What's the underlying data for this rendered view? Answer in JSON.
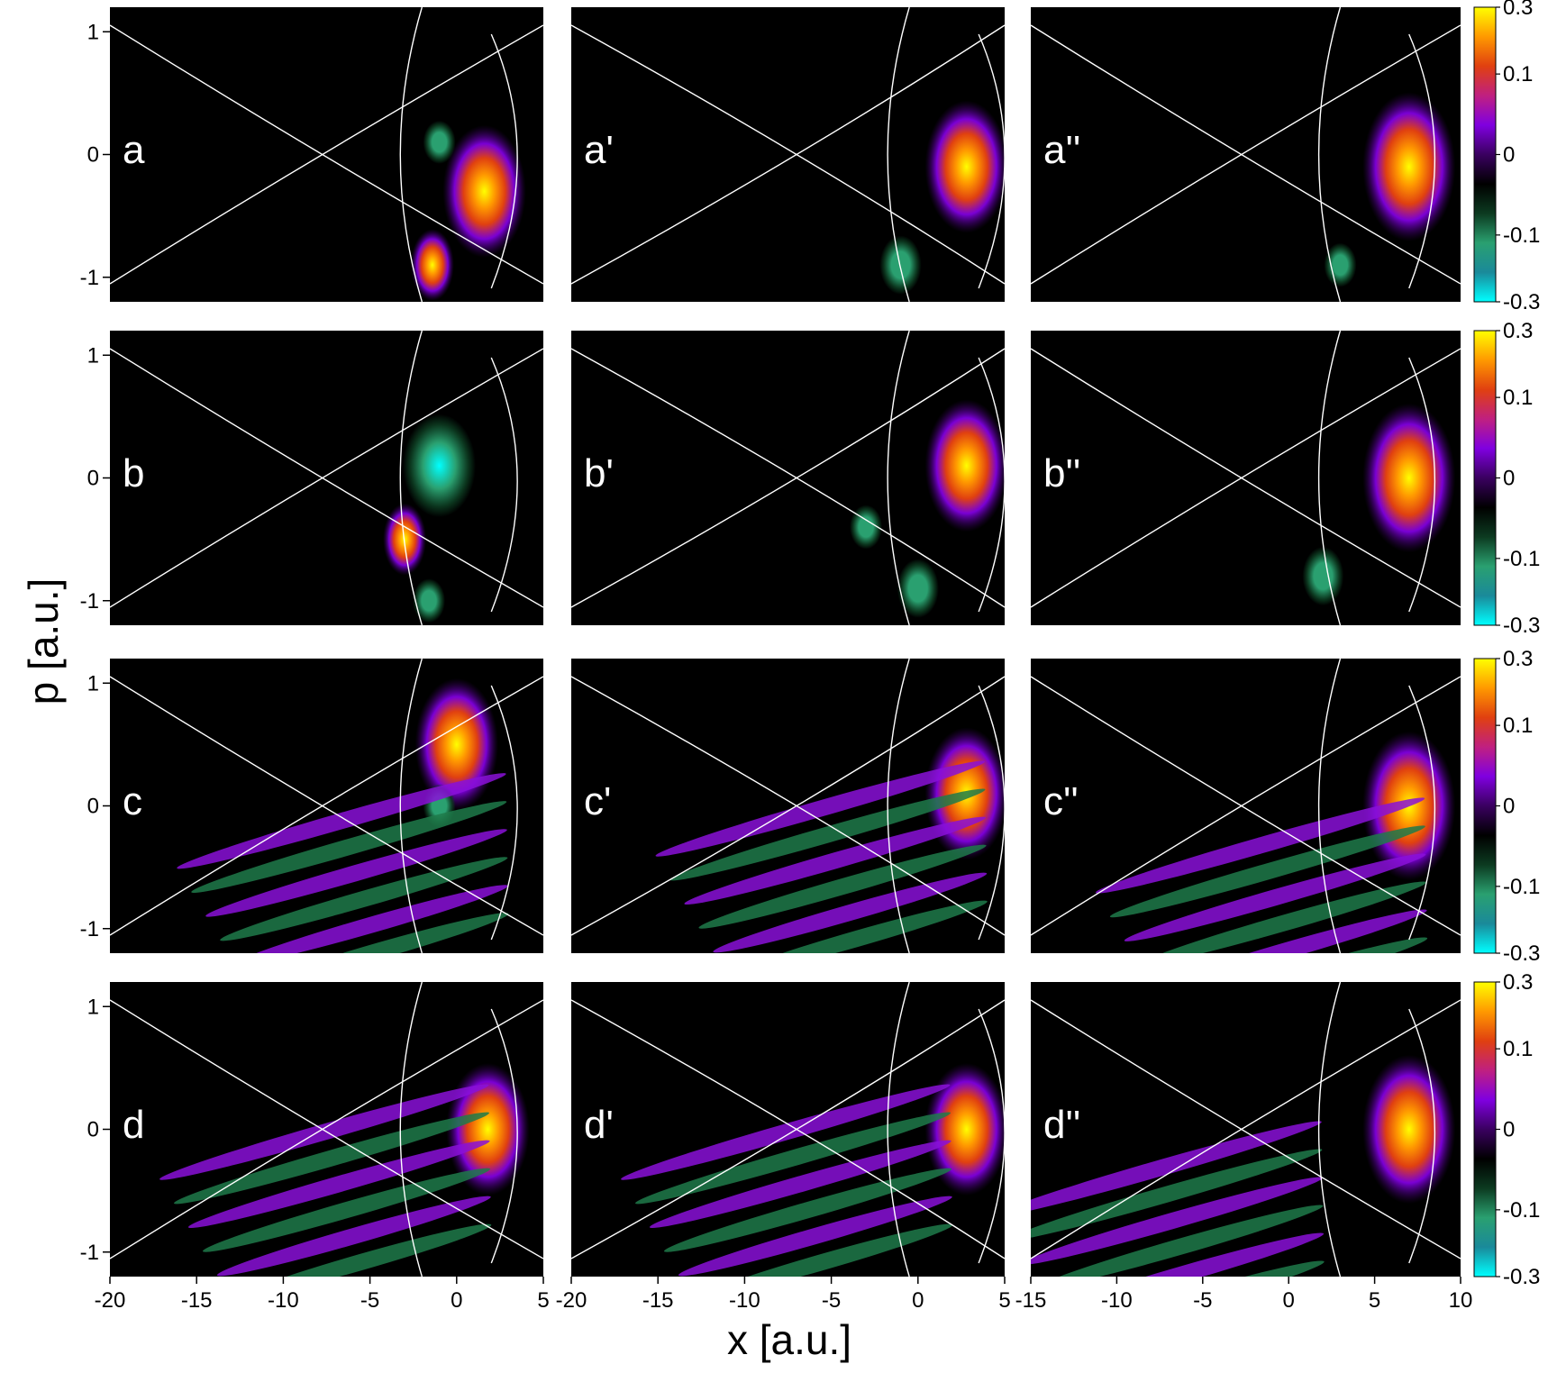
{
  "figure": {
    "ylabel": "p [a.u.]",
    "xlabel": "x [a.u.]",
    "colors": {
      "background": "#000000",
      "separatrix": "#ffffff",
      "colormap": [
        "#00ffff",
        "#1a8a9a",
        "#2aa070",
        "#0c3a20",
        "#000000",
        "#3a0060",
        "#8000e0",
        "#c02080",
        "#e04010",
        "#ff9900",
        "#ffff00"
      ]
    }
  },
  "chart_data": [
    {
      "type": "heatmap",
      "panel_label": "a",
      "row": 0,
      "col": 0,
      "xlim": [
        -20,
        5
      ],
      "ylim": [
        -1.2,
        1.2
      ],
      "yticks": [
        1,
        0,
        -1
      ],
      "ytick_labels": [
        "1",
        "0",
        "-1"
      ],
      "xticks": [],
      "xtick_labels": [],
      "features": [
        {
          "x": 1.6,
          "y": -0.3,
          "w": 0.4,
          "pos": 0.3
        },
        {
          "x": -1.0,
          "y": 0.1,
          "w": 0.1,
          "neg": 0.12
        },
        {
          "x": -1.4,
          "y": -0.9,
          "w": 0.15,
          "pos": 0.1
        }
      ]
    },
    {
      "type": "heatmap",
      "panel_label": "a'",
      "row": 0,
      "col": 1,
      "xlim": [
        -20,
        5
      ],
      "ylim": [
        -1.2,
        1.2
      ],
      "yticks": [],
      "ytick_labels": [],
      "xticks": [],
      "xtick_labels": [],
      "features": [
        {
          "x": 2.8,
          "y": -0.1,
          "w": 0.4,
          "pos": 0.3
        },
        {
          "x": -1.0,
          "y": -0.9,
          "w": 0.2,
          "neg": 0.05
        }
      ]
    },
    {
      "type": "heatmap",
      "panel_label": "a''",
      "row": 0,
      "col": 2,
      "xlim": [
        -15,
        10
      ],
      "ylim": [
        -1.2,
        1.2
      ],
      "yticks": [],
      "ytick_labels": [],
      "xticks": [],
      "xtick_labels": [],
      "features": [
        {
          "x": 7.0,
          "y": -0.1,
          "w": 0.45,
          "pos": 0.3
        },
        {
          "x": 3.0,
          "y": -0.9,
          "w": 0.15,
          "neg": 0.04
        }
      ]
    },
    {
      "type": "heatmap",
      "panel_label": "b",
      "row": 1,
      "col": 0,
      "xlim": [
        -20,
        5
      ],
      "ylim": [
        -1.2,
        1.2
      ],
      "yticks": [
        1,
        0,
        -1
      ],
      "ytick_labels": [
        "1",
        "0",
        "-1"
      ],
      "xticks": [],
      "xtick_labels": [],
      "features": [
        {
          "x": -1.0,
          "y": 0.1,
          "w": 0.35,
          "neg": 0.3
        },
        {
          "x": -3.0,
          "y": -0.5,
          "w": 0.15,
          "pos": 0.15
        },
        {
          "x": -1.6,
          "y": -1.0,
          "w": 0.15,
          "neg": 0.08
        }
      ]
    },
    {
      "type": "heatmap",
      "panel_label": "b'",
      "row": 1,
      "col": 1,
      "xlim": [
        -20,
        5
      ],
      "ylim": [
        -1.2,
        1.2
      ],
      "yticks": [],
      "ytick_labels": [],
      "xticks": [],
      "xtick_labels": [],
      "features": [
        {
          "x": 2.8,
          "y": 0.1,
          "w": 0.4,
          "pos": 0.3
        },
        {
          "x": -3.0,
          "y": -0.4,
          "w": 0.15,
          "neg": 0.1
        },
        {
          "x": 0.0,
          "y": -0.9,
          "w": 0.2,
          "neg": 0.08
        }
      ]
    },
    {
      "type": "heatmap",
      "panel_label": "b''",
      "row": 1,
      "col": 2,
      "xlim": [
        -15,
        10
      ],
      "ylim": [
        -1.2,
        1.2
      ],
      "yticks": [],
      "ytick_labels": [],
      "xticks": [],
      "xtick_labels": [],
      "features": [
        {
          "x": 7.0,
          "y": 0.0,
          "w": 0.45,
          "pos": 0.3
        },
        {
          "x": 2.0,
          "y": -0.8,
          "w": 0.2,
          "neg": 0.08
        }
      ]
    },
    {
      "type": "heatmap",
      "panel_label": "c",
      "row": 2,
      "col": 0,
      "xlim": [
        -20,
        5
      ],
      "ylim": [
        -1.2,
        1.2
      ],
      "yticks": [
        1,
        0,
        -1
      ],
      "ytick_labels": [
        "1",
        "0",
        "-1"
      ],
      "xticks": [],
      "xtick_labels": [],
      "features": [
        {
          "x": 0.0,
          "y": 0.5,
          "w": 0.4,
          "pos": 0.2
        },
        {
          "x": -1.0,
          "y": 0.0,
          "w": 0.15,
          "neg": 0.2
        },
        {
          "x": -5.0,
          "y": -0.4,
          "w": 0.3,
          "fringes": true
        }
      ]
    },
    {
      "type": "heatmap",
      "panel_label": "c'",
      "row": 2,
      "col": 1,
      "xlim": [
        -20,
        5
      ],
      "ylim": [
        -1.2,
        1.2
      ],
      "yticks": [],
      "ytick_labels": [],
      "xticks": [],
      "xtick_labels": [],
      "features": [
        {
          "x": 2.8,
          "y": 0.1,
          "w": 0.4,
          "pos": 0.3
        },
        {
          "x": -4.0,
          "y": -0.3,
          "w": 0.3,
          "fringes": true
        }
      ]
    },
    {
      "type": "heatmap",
      "panel_label": "c''",
      "row": 2,
      "col": 2,
      "xlim": [
        -15,
        10
      ],
      "ylim": [
        -1.2,
        1.2
      ],
      "yticks": [],
      "ytick_labels": [],
      "xticks": [],
      "xtick_labels": [],
      "features": [
        {
          "x": 7.0,
          "y": 0.0,
          "w": 0.45,
          "pos": 0.3
        },
        {
          "x": 0.0,
          "y": -0.6,
          "w": 0.3,
          "fringes": true
        }
      ]
    },
    {
      "type": "heatmap",
      "panel_label": "d",
      "row": 3,
      "col": 0,
      "xlim": [
        -20,
        5
      ],
      "ylim": [
        -1.2,
        1.2
      ],
      "yticks": [
        1,
        0,
        -1
      ],
      "ytick_labels": [
        "1",
        "0",
        "-1"
      ],
      "xticks": [
        -20,
        -15,
        -10,
        -5,
        0,
        5
      ],
      "xtick_labels": [
        "-20",
        "-15",
        "-10",
        "-5",
        "0",
        "5"
      ],
      "features": [
        {
          "x": 1.8,
          "y": 0.0,
          "w": 0.4,
          "pos": 0.3
        },
        {
          "x": -6.0,
          "y": -0.3,
          "w": 0.3,
          "fringes": true
        }
      ]
    },
    {
      "type": "heatmap",
      "panel_label": "d'",
      "row": 3,
      "col": 1,
      "xlim": [
        -20,
        5
      ],
      "ylim": [
        -1.2,
        1.2
      ],
      "yticks": [],
      "ytick_labels": [],
      "xticks": [
        -20,
        -15,
        -10,
        -5,
        0,
        5
      ],
      "xtick_labels": [
        "-20",
        "-15",
        "-10",
        "-5",
        "0",
        "5"
      ],
      "features": [
        {
          "x": 2.8,
          "y": 0.0,
          "w": 0.4,
          "pos": 0.3
        },
        {
          "x": -6.0,
          "y": -0.3,
          "w": 0.3,
          "fringes": true
        }
      ]
    },
    {
      "type": "heatmap",
      "panel_label": "d''",
      "row": 3,
      "col": 2,
      "xlim": [
        -15,
        10
      ],
      "ylim": [
        -1.2,
        1.2
      ],
      "yticks": [],
      "ytick_labels": [],
      "xticks": [
        -15,
        -10,
        -5,
        0,
        5,
        10
      ],
      "xtick_labels": [
        "-15",
        "-10",
        "-5",
        "0",
        "5",
        "10"
      ],
      "features": [
        {
          "x": 7.0,
          "y": 0.0,
          "w": 0.45,
          "pos": 0.3
        },
        {
          "x": -6.0,
          "y": -0.6,
          "w": 0.3,
          "fringes": true
        }
      ]
    }
  ],
  "colorbars": [
    {
      "row": 0,
      "ticks": [
        0.3,
        0.1,
        0,
        -0.1,
        -0.3
      ],
      "tick_labels": [
        "0.3",
        "0.1",
        "0",
        "-0.1",
        "-0.3"
      ]
    },
    {
      "row": 1,
      "ticks": [
        0.3,
        0.1,
        0,
        -0.1,
        -0.3
      ],
      "tick_labels": [
        "0.3",
        "0.1",
        "0",
        "-0.1",
        "-0.3"
      ]
    },
    {
      "row": 2,
      "ticks": [
        0.3,
        0.1,
        0,
        -0.1,
        -0.3
      ],
      "tick_labels": [
        "0.3",
        "0.1",
        "0",
        "-0.1",
        "-0.3"
      ]
    },
    {
      "row": 3,
      "ticks": [
        0.3,
        0.1,
        0,
        -0.1,
        -0.3
      ],
      "tick_labels": [
        "0.3",
        "0.1",
        "0",
        "-0.1",
        "-0.3"
      ]
    }
  ]
}
